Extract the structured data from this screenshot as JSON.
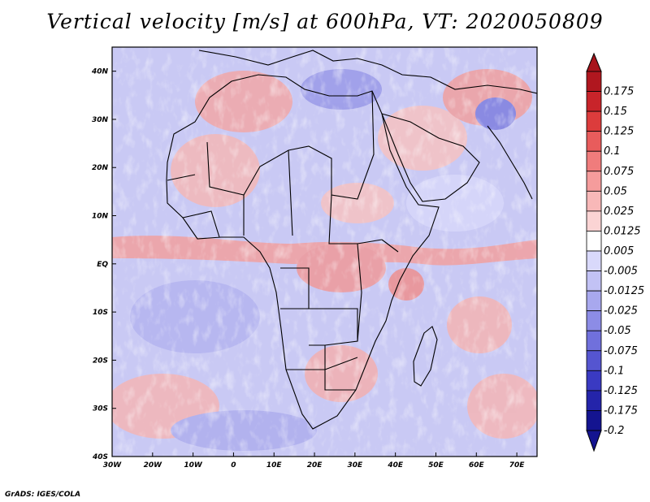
{
  "title": "Vertical velocity [m/s] at 600hPa, VT: 2020050809",
  "footer": "GrADS: IGES/COLA",
  "map": {
    "region": "Africa",
    "lon_range": [
      -30,
      75
    ],
    "lat_range": [
      -40,
      45
    ],
    "x_ticks": [
      "30W",
      "20W",
      "10W",
      "0",
      "10E",
      "20E",
      "30E",
      "40E",
      "50E",
      "60E",
      "70E"
    ],
    "y_ticks": [
      "40N",
      "30N",
      "20N",
      "10N",
      "EQ",
      "10S",
      "20S",
      "30S",
      "40S"
    ],
    "field": "vertical velocity",
    "units": "m/s",
    "level": "600hPa",
    "valid_time": "2020050809"
  },
  "colorbar": {
    "labels": [
      "0.175",
      "0.15",
      "0.125",
      "0.1",
      "0.075",
      "0.05",
      "0.025",
      "0.0125",
      "0.005",
      "-0.005",
      "-0.0125",
      "-0.025",
      "-0.05",
      "-0.075",
      "-0.1",
      "-0.125",
      "-0.175",
      "-0.2"
    ],
    "colors": [
      "#b0171f",
      "#c8242a",
      "#dc3c3c",
      "#e85c5c",
      "#f07c7c",
      "#f59c9c",
      "#f8b8b8",
      "#fbd4d4",
      "#ffffff",
      "#d9d9fb",
      "#c2c2f5",
      "#a8a8ee",
      "#8c8ce6",
      "#7070dc",
      "#5555d0",
      "#3a3ac2",
      "#2424aa",
      "#141490"
    ]
  },
  "colors": {
    "warm": "#e86464",
    "cool": "#7a7ae8",
    "background": "#ffffff"
  }
}
